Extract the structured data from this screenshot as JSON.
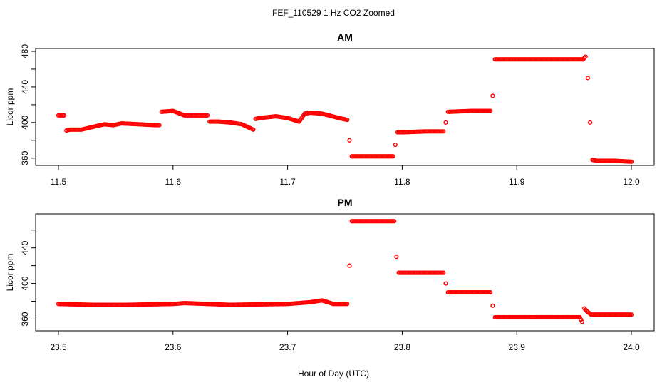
{
  "figure": {
    "title": "FEF_110529  1 Hz CO2 Zoomed",
    "xlabel": "Hour of Day (UTC)"
  },
  "colors": {
    "points": "#ff0000",
    "axis": "#000000",
    "background": "#ffffff"
  },
  "chart_data": [
    {
      "type": "scatter",
      "title": "AM",
      "xlabel": "",
      "ylabel": "Licor ppm",
      "xlim": [
        11.5,
        12.0
      ],
      "ylim": [
        355,
        480
      ],
      "xticks": [
        11.5,
        11.6,
        11.7,
        11.8,
        11.9,
        12.0
      ],
      "xtick_labels": [
        "11.5",
        "11.6",
        "11.7",
        "11.8",
        "11.9",
        "12.0"
      ],
      "yticks": [
        360,
        400,
        440,
        480
      ],
      "ytick_labels": [
        "360",
        "400",
        "440",
        "480"
      ],
      "grid": false,
      "marker": "open-circle",
      "series": [
        {
          "x": [
            11.5,
            11.505,
            11.507,
            11.51,
            11.52,
            11.53,
            11.54,
            11.548,
            11.555,
            11.57,
            11.585,
            11.588,
            11.59,
            11.6,
            11.61,
            11.625,
            11.63,
            11.632,
            11.64,
            11.65,
            11.66,
            11.67,
            11.672,
            11.675,
            11.69,
            11.7,
            11.71,
            11.715,
            11.72,
            11.73,
            11.745,
            11.752,
            11.754,
            11.756,
            11.76,
            11.775,
            11.792,
            11.794,
            11.796,
            11.8,
            11.82,
            11.836,
            11.838,
            11.84,
            11.86,
            11.877,
            11.879,
            11.881,
            11.9,
            11.93,
            11.958,
            11.96,
            11.962,
            11.964,
            11.966,
            11.97,
            11.985,
            12.0
          ],
          "y": [
            408,
            408,
            391,
            392,
            392,
            395,
            398,
            397,
            399,
            398,
            397,
            397,
            412,
            413,
            408,
            408,
            408,
            401,
            401,
            400,
            398,
            392,
            404,
            405,
            407,
            405,
            401,
            410,
            411,
            410,
            405,
            403,
            380,
            362,
            362,
            362,
            362,
            375,
            389,
            389,
            390,
            390,
            400,
            412,
            413,
            413,
            430,
            471,
            471,
            471,
            471,
            474,
            450,
            400,
            358,
            357,
            357,
            356
          ]
        }
      ]
    },
    {
      "type": "scatter",
      "title": "PM",
      "xlabel": "",
      "ylabel": "Licor ppm",
      "xlim": [
        23.5,
        24.0
      ],
      "ylim": [
        350,
        475
      ],
      "xticks": [
        23.5,
        23.6,
        23.7,
        23.8,
        23.9,
        24.0
      ],
      "xtick_labels": [
        "23.5",
        "23.6",
        "23.7",
        "23.8",
        "23.9",
        "24.0"
      ],
      "yticks": [
        360,
        400,
        440
      ],
      "ytick_labels": [
        "360",
        "400",
        "440"
      ],
      "grid": false,
      "marker": "open-circle",
      "series": [
        {
          "x": [
            23.5,
            23.53,
            23.56,
            23.6,
            23.61,
            23.65,
            23.7,
            23.72,
            23.73,
            23.74,
            23.752,
            23.754,
            23.756,
            23.758,
            23.76,
            23.78,
            23.793,
            23.795,
            23.797,
            23.8,
            23.82,
            23.836,
            23.838,
            23.84,
            23.86,
            23.877,
            23.879,
            23.881,
            23.9,
            23.93,
            23.955,
            23.957,
            23.959,
            23.961,
            23.965,
            23.98,
            24.0
          ],
          "y": [
            377,
            376,
            376,
            377,
            378,
            376,
            377,
            379,
            381,
            377,
            377,
            420,
            470,
            470,
            470,
            470,
            470,
            430,
            412,
            412,
            412,
            412,
            400,
            390,
            390,
            390,
            375,
            362,
            362,
            362,
            362,
            357,
            372,
            369,
            365,
            365,
            365
          ]
        }
      ]
    }
  ]
}
